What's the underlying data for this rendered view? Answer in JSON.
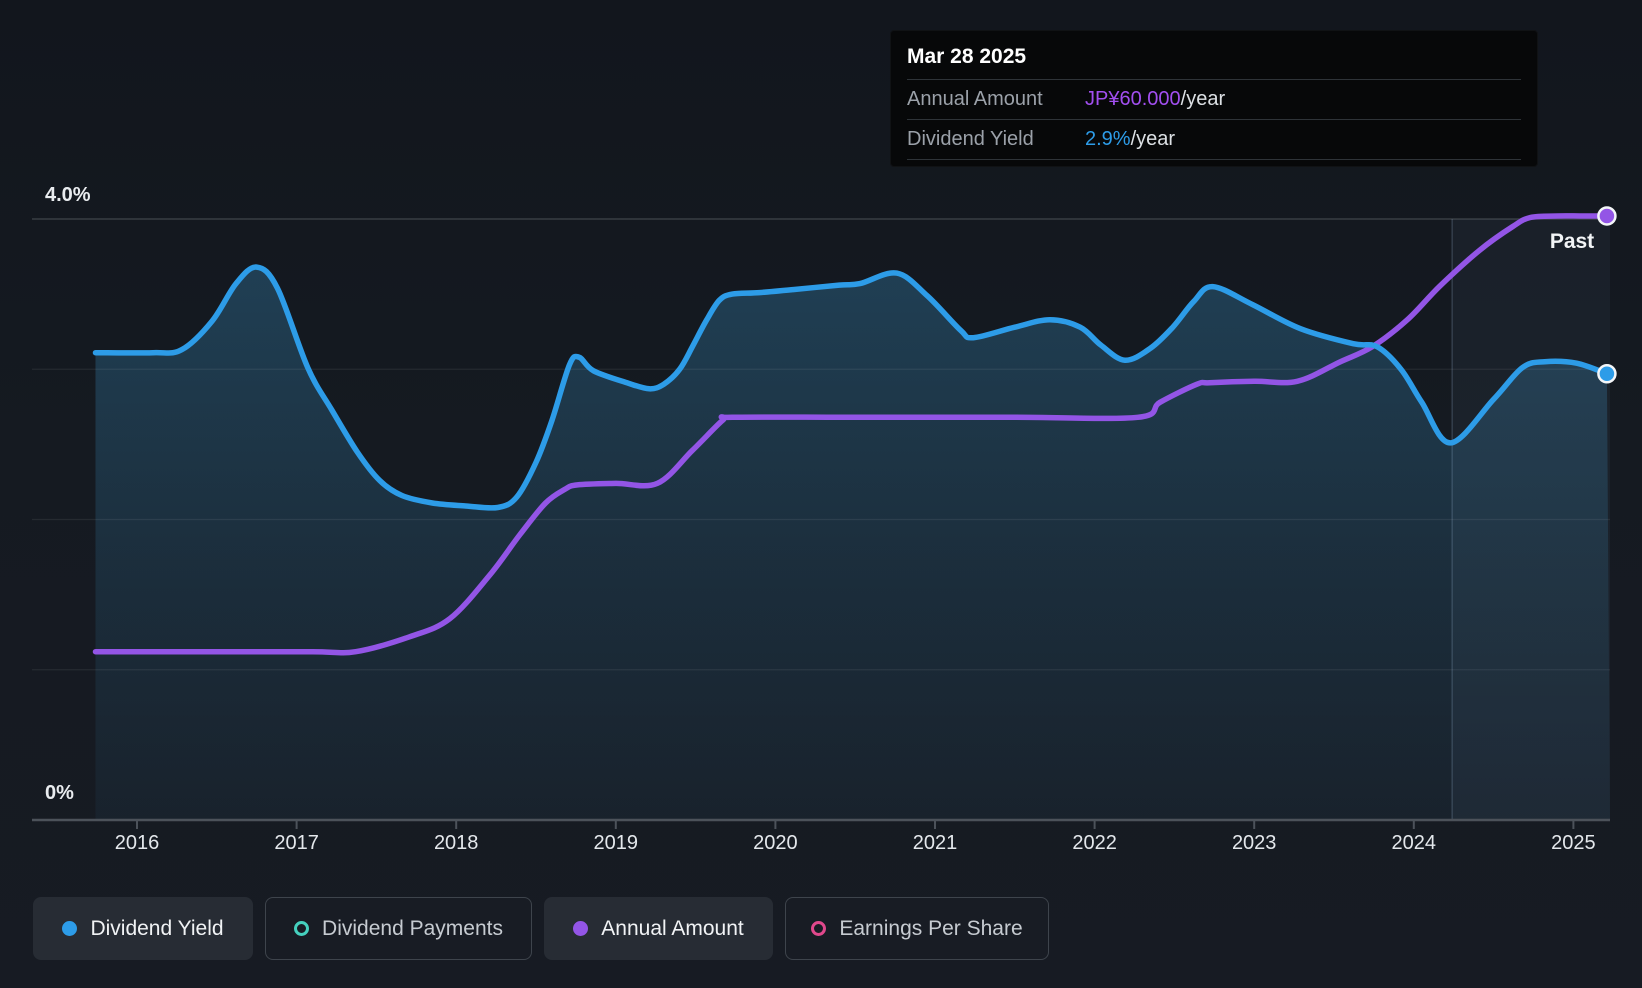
{
  "tooltip": {
    "date": "Mar 28 2025",
    "rows": [
      {
        "label": "Annual Amount",
        "value": "JP¥60.000",
        "suffix": "/year",
        "color": "#a24ff0"
      },
      {
        "label": "Dividend Yield",
        "value": "2.9%",
        "suffix": "/year",
        "color": "#2d9ce8"
      }
    ]
  },
  "axis_labels": {
    "y_top": "4.0%",
    "y_bottom": "0%",
    "x": [
      "2016",
      "2017",
      "2018",
      "2019",
      "2020",
      "2021",
      "2022",
      "2023",
      "2024",
      "2025"
    ]
  },
  "annotations": {
    "past_label": "Past",
    "divider_year": 2024.24
  },
  "chart_data": {
    "type": "area",
    "title": "Dividend history chart",
    "x_axis": {
      "ticks": [
        2016,
        2017,
        2018,
        2019,
        2020,
        2021,
        2022,
        2023,
        2024,
        2025
      ],
      "range": [
        2015.74,
        2025.23
      ]
    },
    "y_axis": {
      "label_top": "4.0%",
      "label_bottom": "0%",
      "range_pct": [
        0,
        4
      ],
      "gridlines_pct": [
        1,
        2,
        3,
        4
      ],
      "grid": true
    },
    "legend_position": "bottom",
    "series": [
      {
        "name": "Dividend Yield",
        "type": "area-line",
        "color": "#2d9ce8",
        "unit": "percent (left axis)",
        "end_value_label": "2.9%/year",
        "points": [
          [
            2015.74,
            3.11
          ],
          [
            2016.1,
            3.11
          ],
          [
            2016.28,
            3.13
          ],
          [
            2016.47,
            3.32
          ],
          [
            2016.62,
            3.57
          ],
          [
            2016.75,
            3.68
          ],
          [
            2016.88,
            3.54
          ],
          [
            2017.07,
            3.01
          ],
          [
            2017.22,
            2.73
          ],
          [
            2017.38,
            2.45
          ],
          [
            2017.52,
            2.26
          ],
          [
            2017.66,
            2.16
          ],
          [
            2017.85,
            2.11
          ],
          [
            2018.06,
            2.09
          ],
          [
            2018.26,
            2.08
          ],
          [
            2018.38,
            2.15
          ],
          [
            2018.5,
            2.38
          ],
          [
            2018.6,
            2.66
          ],
          [
            2018.71,
            3.03
          ],
          [
            2018.77,
            3.08
          ],
          [
            2018.86,
            2.99
          ],
          [
            2019.07,
            2.91
          ],
          [
            2019.21,
            2.87
          ],
          [
            2019.3,
            2.9
          ],
          [
            2019.4,
            3.0
          ],
          [
            2019.48,
            3.15
          ],
          [
            2019.57,
            3.33
          ],
          [
            2019.65,
            3.46
          ],
          [
            2019.73,
            3.5
          ],
          [
            2019.9,
            3.51
          ],
          [
            2020.11,
            3.53
          ],
          [
            2020.4,
            3.56
          ],
          [
            2020.53,
            3.57
          ],
          [
            2020.76,
            3.64
          ],
          [
            2020.95,
            3.49
          ],
          [
            2021.16,
            3.26
          ],
          [
            2021.24,
            3.21
          ],
          [
            2021.5,
            3.28
          ],
          [
            2021.72,
            3.33
          ],
          [
            2021.91,
            3.28
          ],
          [
            2022.04,
            3.16
          ],
          [
            2022.19,
            3.06
          ],
          [
            2022.35,
            3.14
          ],
          [
            2022.49,
            3.28
          ],
          [
            2022.62,
            3.45
          ],
          [
            2022.74,
            3.55
          ],
          [
            2022.99,
            3.43
          ],
          [
            2023.29,
            3.27
          ],
          [
            2023.62,
            3.17
          ],
          [
            2023.77,
            3.15
          ],
          [
            2023.92,
            3.0
          ],
          [
            2024.05,
            2.78
          ],
          [
            2024.23,
            2.51
          ],
          [
            2024.5,
            2.8
          ],
          [
            2024.68,
            3.01
          ],
          [
            2024.82,
            3.05
          ],
          [
            2025.02,
            3.04
          ],
          [
            2025.21,
            2.97
          ]
        ]
      },
      {
        "name": "Annual Amount",
        "type": "line",
        "color": "#9355e6",
        "unit": "plotted as left-axis equivalent",
        "end_value_label": "JP¥60.000/year",
        "points": [
          [
            2015.74,
            1.12
          ],
          [
            2016.5,
            1.12
          ],
          [
            2017.1,
            1.12
          ],
          [
            2017.37,
            1.12
          ],
          [
            2017.71,
            1.22
          ],
          [
            2017.96,
            1.34
          ],
          [
            2018.21,
            1.63
          ],
          [
            2018.4,
            1.9
          ],
          [
            2018.56,
            2.11
          ],
          [
            2018.68,
            2.2
          ],
          [
            2018.76,
            2.23
          ],
          [
            2019.0,
            2.24
          ],
          [
            2019.26,
            2.24
          ],
          [
            2019.48,
            2.46
          ],
          [
            2019.67,
            2.66
          ],
          [
            2019.73,
            2.68
          ],
          [
            2020.5,
            2.68
          ],
          [
            2021.5,
            2.68
          ],
          [
            2022.27,
            2.68
          ],
          [
            2022.41,
            2.78
          ],
          [
            2022.64,
            2.9
          ],
          [
            2022.72,
            2.91
          ],
          [
            2023.0,
            2.92
          ],
          [
            2023.27,
            2.92
          ],
          [
            2023.54,
            3.05
          ],
          [
            2023.74,
            3.15
          ],
          [
            2023.96,
            3.33
          ],
          [
            2024.16,
            3.55
          ],
          [
            2024.41,
            3.79
          ],
          [
            2024.62,
            3.95
          ],
          [
            2024.73,
            4.01
          ],
          [
            2024.9,
            4.02
          ],
          [
            2025.05,
            4.02
          ],
          [
            2025.21,
            4.02
          ]
        ]
      }
    ]
  },
  "legend": [
    {
      "label": "Dividend Yield",
      "color": "#2d9ce8",
      "active": true
    },
    {
      "label": "Dividend Payments",
      "color": "#45d0be",
      "active": false
    },
    {
      "label": "Annual Amount",
      "color": "#9355e6",
      "active": true
    },
    {
      "label": "Earnings Per Share",
      "color": "#e0488c",
      "active": false
    }
  ]
}
